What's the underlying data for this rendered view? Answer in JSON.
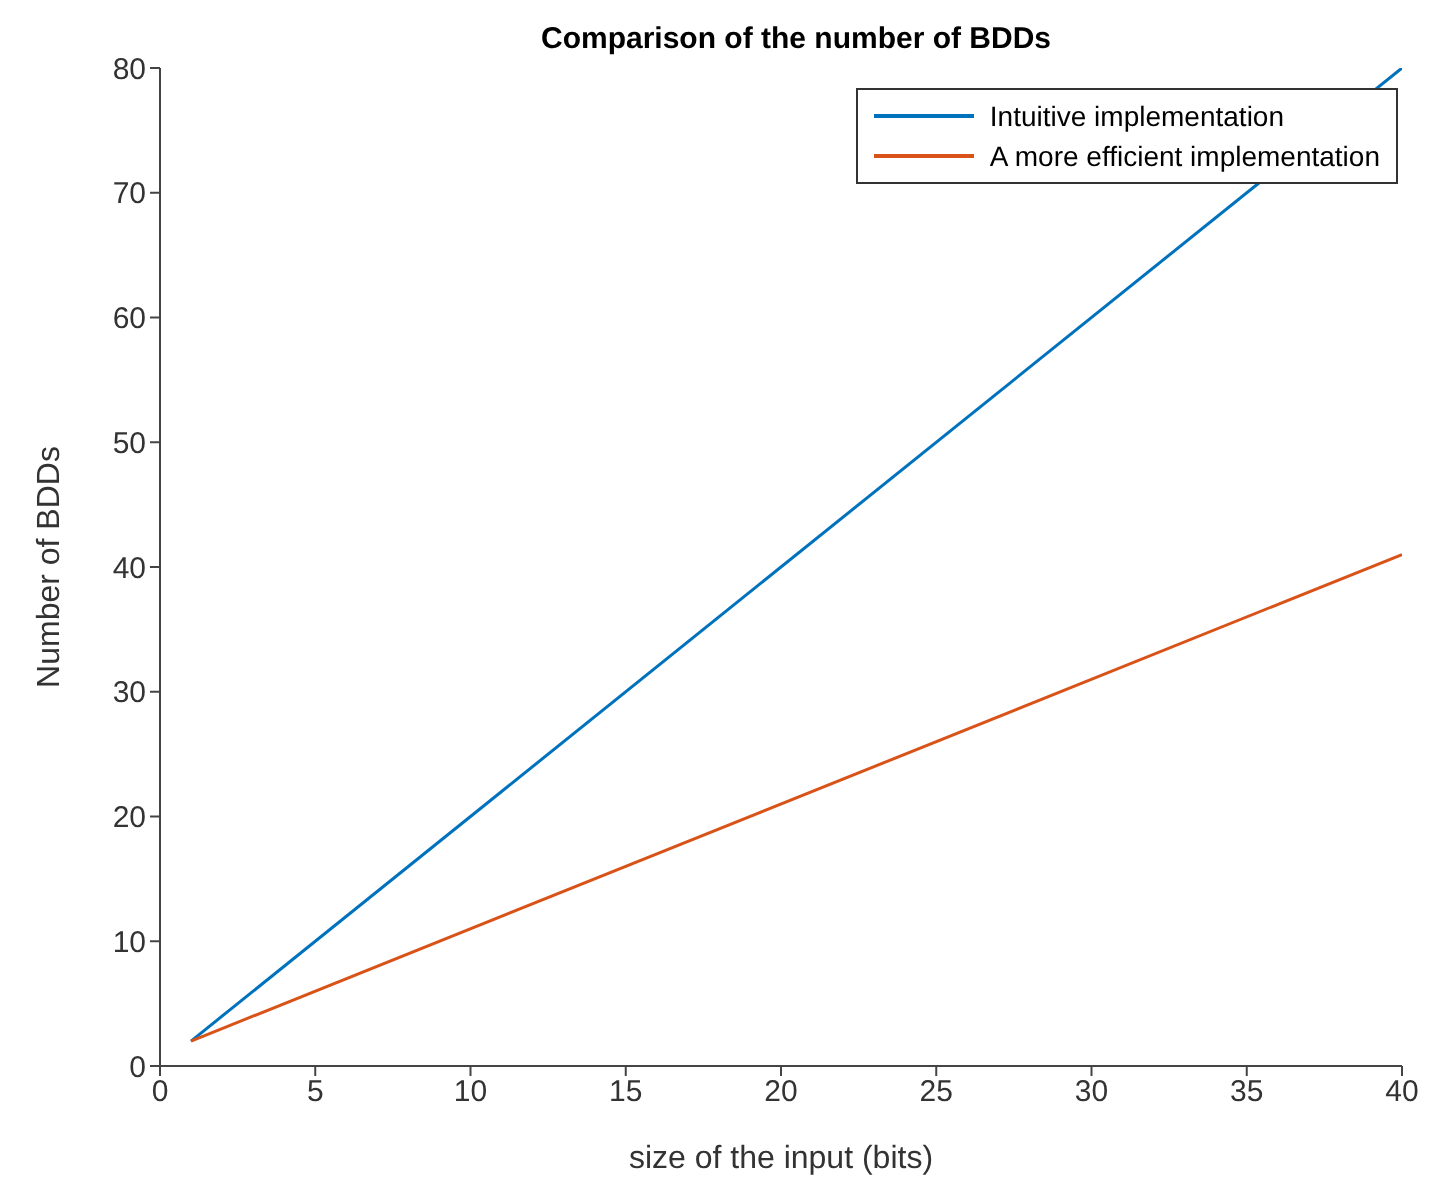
{
  "chart_data": {
    "type": "line",
    "title": "Comparison of the number of BDDs",
    "xlabel": "size of the input (bits)",
    "ylabel": "Number of BDDs",
    "x": [
      1,
      40
    ],
    "series": [
      {
        "name": "Intuitive implementation",
        "color": "#0072bd",
        "values": [
          2,
          80
        ]
      },
      {
        "name": "A more efficient implementation",
        "color": "#d95319",
        "values": [
          2,
          41
        ]
      }
    ],
    "xlim": [
      0,
      40
    ],
    "xticks": [
      0,
      5,
      10,
      15,
      20,
      25,
      30,
      35,
      40
    ],
    "ylim": [
      0,
      80
    ],
    "yticks": [
      0,
      10,
      20,
      30,
      40,
      50,
      60,
      70,
      80
    ],
    "grid": false,
    "legend": "top right",
    "marker": "none",
    "line_style": "solid"
  }
}
